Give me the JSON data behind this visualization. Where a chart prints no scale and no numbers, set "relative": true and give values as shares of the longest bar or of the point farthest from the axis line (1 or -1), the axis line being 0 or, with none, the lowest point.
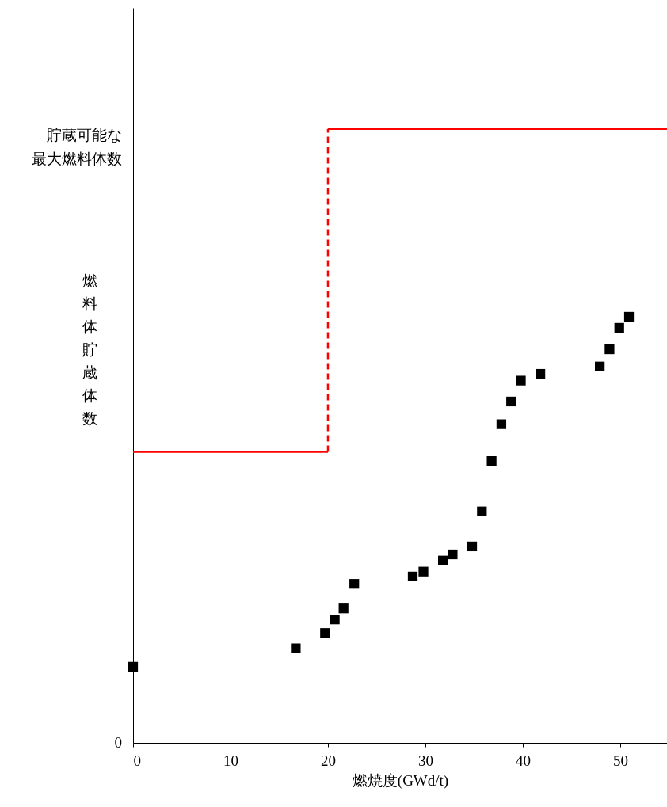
{
  "chart_data": {
    "type": "scatter",
    "relative": true,
    "xlabel": "燃焼度(GWd/t)",
    "ylabel": "燃料体貯蔵体数",
    "xlim": [
      0,
      54.8
    ],
    "xticks": [
      0,
      10,
      20,
      30,
      40,
      50
    ],
    "grid": false,
    "series": [
      {
        "type": "line",
        "color": "#ff0000",
        "line_style": "solid",
        "x": [
          0,
          20
        ],
        "values": [
          0.474,
          0.474
        ]
      },
      {
        "type": "line",
        "color": "#ff0000",
        "line_style": "dashed",
        "x": [
          20,
          20
        ],
        "values": [
          0.474,
          1
        ]
      },
      {
        "type": "line",
        "color": "#ff0000",
        "line_style": "solid",
        "x": [
          20,
          54.8
        ],
        "values": [
          1,
          1
        ]
      },
      {
        "color": "#000000",
        "marker": "square",
        "x": [
          0,
          16.7,
          19.7,
          20.7,
          21.6,
          22.7,
          28.7,
          29.8,
          31.8,
          32.8,
          34.8,
          35.8,
          36.8,
          37.8,
          38.8,
          39.8,
          41.8,
          47.9,
          48.9,
          49.9,
          50.9
        ],
        "values": [
          0.124,
          0.154,
          0.179,
          0.201,
          0.219,
          0.259,
          0.271,
          0.279,
          0.297,
          0.307,
          0.32,
          0.377,
          0.459,
          0.519,
          0.556,
          0.59,
          0.601,
          0.613,
          0.641,
          0.676,
          0.694
        ]
      }
    ],
    "annotations": [
      "0",
      "貯蔵可能な最大燃料体数"
    ]
  }
}
